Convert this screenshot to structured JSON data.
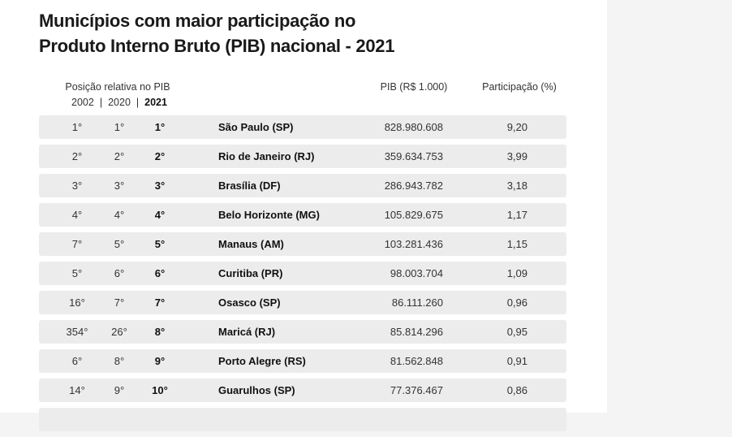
{
  "title": {
    "line1": "Municípios com maior participação no",
    "line2": "Produto Interno Bruto (PIB) nacional - 2021"
  },
  "header": {
    "position_label": "Posição relativa no PIB",
    "year_2002": "2002",
    "year_2020": "2020",
    "year_2021": "2021",
    "separator": "|",
    "pib_label": "PIB (R$ 1.000)",
    "share_label": "Participação (%)"
  },
  "rows": [
    {
      "p2002": "1°",
      "p2020": "1°",
      "p2021": "1°",
      "name": "São Paulo (SP)",
      "pib": "828.980.608",
      "share": "9,20"
    },
    {
      "p2002": "2°",
      "p2020": "2°",
      "p2021": "2°",
      "name": "Rio de Janeiro (RJ)",
      "pib": "359.634.753",
      "share": "3,99"
    },
    {
      "p2002": "3°",
      "p2020": "3°",
      "p2021": "3°",
      "name": "Brasília (DF)",
      "pib": "286.943.782",
      "share": "3,18"
    },
    {
      "p2002": "4°",
      "p2020": "4°",
      "p2021": "4°",
      "name": "Belo Horizonte (MG)",
      "pib": "105.829.675",
      "share": "1,17"
    },
    {
      "p2002": "7°",
      "p2020": "5°",
      "p2021": "5°",
      "name": "Manaus (AM)",
      "pib": "103.281.436",
      "share": "1,15"
    },
    {
      "p2002": "5°",
      "p2020": "6°",
      "p2021": "6°",
      "name": "Curitiba (PR)",
      "pib": "98.003.704",
      "share": "1,09"
    },
    {
      "p2002": "16°",
      "p2020": "7°",
      "p2021": "7°",
      "name": "Osasco (SP)",
      "pib": "86.111.260",
      "share": "0,96"
    },
    {
      "p2002": "354°",
      "p2020": "26°",
      "p2021": "8°",
      "name": "Maricá (RJ)",
      "pib": "85.814.296",
      "share": "0,95"
    },
    {
      "p2002": "6°",
      "p2020": "8°",
      "p2021": "9°",
      "name": "Porto Alegre (RS)",
      "pib": "81.562.848",
      "share": "0,91"
    },
    {
      "p2002": "14°",
      "p2020": "9°",
      "p2021": "10°",
      "name": "Guarulhos (SP)",
      "pib": "77.376.467",
      "share": "0,86"
    },
    {
      "p2002": "",
      "p2020": "",
      "p2021": "",
      "name": "",
      "pib": "",
      "share": ""
    }
  ]
}
